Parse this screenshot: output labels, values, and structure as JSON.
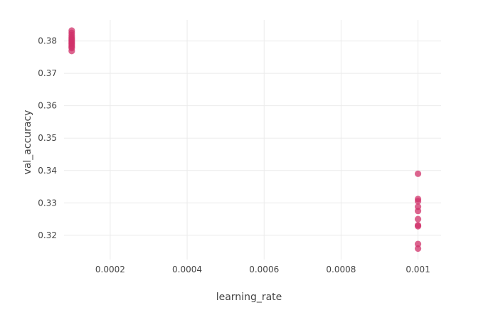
{
  "chart_data": {
    "type": "scatter",
    "title": "",
    "xlabel": "learning_rate",
    "ylabel": "val_accuracy",
    "xlim": [
      8e-05,
      0.00106
    ],
    "ylim": [
      0.3125,
      0.3865
    ],
    "grid": true,
    "legend": "none",
    "color": "#d0316a",
    "x_ticks": [
      {
        "value": 0.0002,
        "label": "0.0002"
      },
      {
        "value": 0.0004,
        "label": "0.0004"
      },
      {
        "value": 0.0006,
        "label": "0.0006"
      },
      {
        "value": 0.0008,
        "label": "0.0008"
      },
      {
        "value": 0.001,
        "label": "0.001"
      }
    ],
    "y_ticks": [
      {
        "value": 0.32,
        "label": "0.32"
      },
      {
        "value": 0.33,
        "label": "0.33"
      },
      {
        "value": 0.34,
        "label": "0.34"
      },
      {
        "value": 0.35,
        "label": "0.35"
      },
      {
        "value": 0.36,
        "label": "0.36"
      },
      {
        "value": 0.37,
        "label": "0.37"
      },
      {
        "value": 0.38,
        "label": "0.38"
      }
    ],
    "points": [
      {
        "x": 0.0001,
        "y": 0.3832
      },
      {
        "x": 0.0001,
        "y": 0.3825
      },
      {
        "x": 0.0001,
        "y": 0.3818
      },
      {
        "x": 0.0001,
        "y": 0.3812
      },
      {
        "x": 0.0001,
        "y": 0.3807
      },
      {
        "x": 0.0001,
        "y": 0.3803
      },
      {
        "x": 0.0001,
        "y": 0.3799
      },
      {
        "x": 0.0001,
        "y": 0.3795
      },
      {
        "x": 0.0001,
        "y": 0.3791
      },
      {
        "x": 0.0001,
        "y": 0.3787
      },
      {
        "x": 0.0001,
        "y": 0.3782
      },
      {
        "x": 0.0001,
        "y": 0.3778
      },
      {
        "x": 0.0001,
        "y": 0.3769
      },
      {
        "x": 0.001,
        "y": 0.339
      },
      {
        "x": 0.001,
        "y": 0.3312
      },
      {
        "x": 0.001,
        "y": 0.3305
      },
      {
        "x": 0.001,
        "y": 0.3288
      },
      {
        "x": 0.001,
        "y": 0.3275
      },
      {
        "x": 0.001,
        "y": 0.325
      },
      {
        "x": 0.001,
        "y": 0.3231
      },
      {
        "x": 0.001,
        "y": 0.3228
      },
      {
        "x": 0.001,
        "y": 0.3173
      },
      {
        "x": 0.001,
        "y": 0.3159
      }
    ]
  }
}
